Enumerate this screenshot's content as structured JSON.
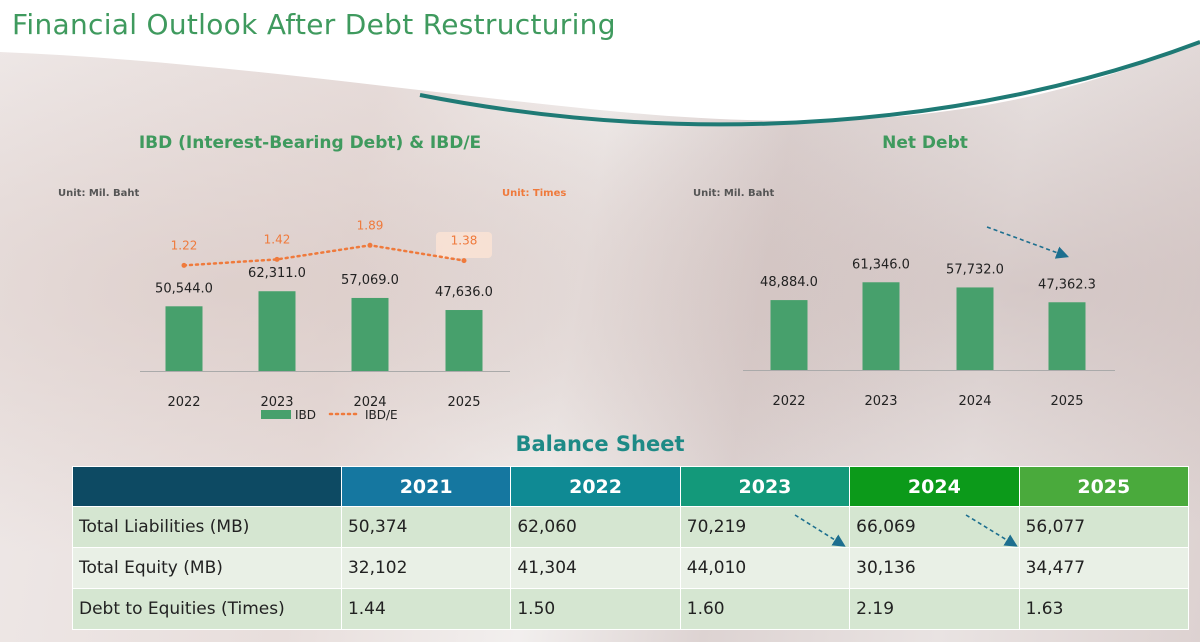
{
  "title": "Financial Outlook After Debt Restructuring",
  "colors": {
    "bar": "#47a06c",
    "line": "#ef7a3c",
    "arrow": "#1d6f8f"
  },
  "chart_data": [
    {
      "type": "bar",
      "title": "IBD (Interest-Bearing Debt) & IBD/E",
      "unit_left": "Unit: Mil. Baht",
      "unit_right": "Unit: Times",
      "categories": [
        "2022",
        "2023",
        "2024",
        "2025"
      ],
      "series": [
        {
          "name": "IBD",
          "type": "bar",
          "values": [
            50544.0,
            62311.0,
            57069.0,
            47636.0
          ],
          "labels": [
            "50,544.0",
            "62,311.0",
            "57,069.0",
            "47,636.0"
          ]
        },
        {
          "name": "IBD/E",
          "type": "line",
          "values": [
            1.22,
            1.42,
            1.89,
            1.38
          ],
          "labels": [
            "1.22",
            "1.42",
            "1.89",
            "1.38"
          ]
        }
      ],
      "legend": [
        "IBD",
        "IBD/E"
      ],
      "legend_placement": "bottom"
    },
    {
      "type": "bar",
      "title": "Net Debt",
      "unit_left": "Unit: Mil. Baht",
      "categories": [
        "2022",
        "2023",
        "2024",
        "2025"
      ],
      "series": [
        {
          "name": "Net Debt",
          "values": [
            48884.0,
            61346.0,
            57732.0,
            47362.3
          ],
          "labels": [
            "48,884.0",
            "61,346.0",
            "57,732.0",
            "47,362.3"
          ]
        }
      ]
    }
  ],
  "balance_sheet": {
    "title": "Balance Sheet",
    "headers": [
      "",
      "2021",
      "2022",
      "2023",
      "2024",
      "2025"
    ],
    "header_colors": [
      "#0d4a63",
      "#1577a0",
      "#0f8a94",
      "#13997a",
      "#0c9a1a",
      "#4aaa3c"
    ],
    "rows": [
      [
        "Total Liabilities (MB)",
        "50,374",
        "62,060",
        "70,219",
        "66,069",
        "56,077"
      ],
      [
        "Total Equity (MB)",
        "32,102",
        "41,304",
        "44,010",
        "30,136",
        "34,477"
      ],
      [
        "Debt to Equities (Times)",
        "1.44",
        "1.50",
        "1.60",
        "2.19",
        "1.63"
      ]
    ]
  }
}
